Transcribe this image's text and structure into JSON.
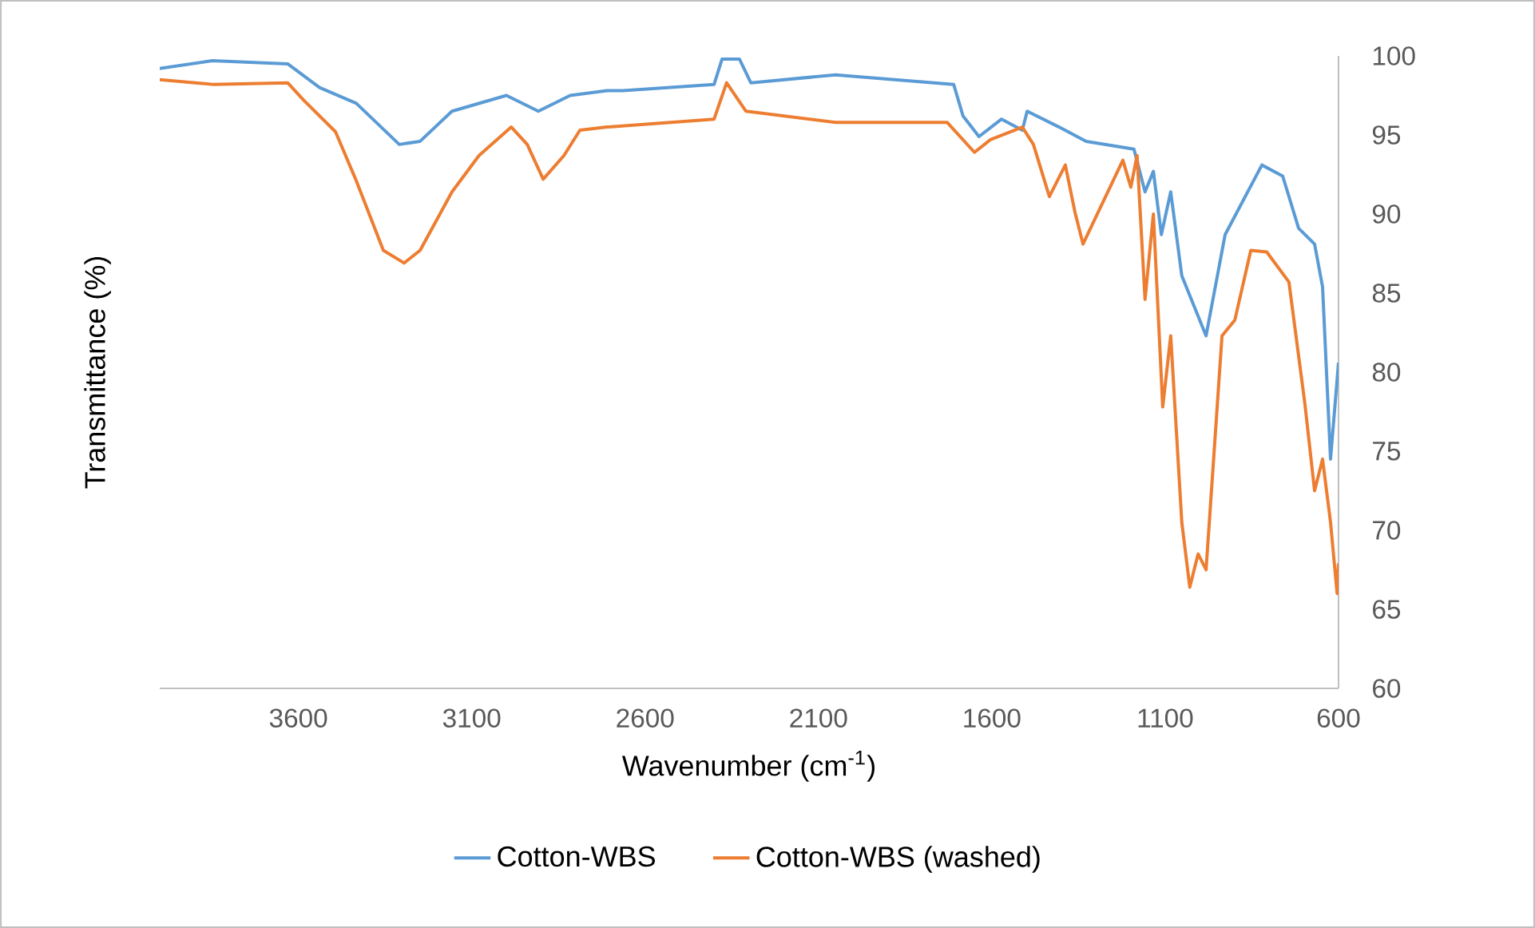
{
  "chart_data": {
    "type": "line",
    "xlabel": "Wavenumber (cm$^{-1}$)",
    "ylabel": "Transmittance (%)",
    "xlim": [
      4000,
      600
    ],
    "xticks": [
      3600,
      3100,
      2600,
      2100,
      1600,
      1100,
      600
    ],
    "ylim": [
      60,
      100
    ],
    "yticks": [
      60,
      65,
      70,
      75,
      80,
      85,
      90,
      95,
      100
    ],
    "legend": "bottom",
    "series": [
      {
        "name": "Cotton-WBS",
        "color": "#5b9bd5",
        "x": [
          4000,
          3848,
          3631,
          3539,
          3433,
          3309,
          3249,
          3157,
          3000,
          2908,
          2816,
          2710,
          2664,
          2401,
          2378,
          2328,
          2295,
          2051,
          1710,
          1683,
          1637,
          1572,
          1512,
          1498,
          1406,
          1328,
          1190,
          1158,
          1134,
          1111,
          1084,
          1052,
          1019,
          982,
          927,
          821,
          761,
          715,
          669,
          646,
          623,
          600
        ],
        "values": [
          99.2,
          99.7,
          99.5,
          98.0,
          97.0,
          94.4,
          94.6,
          96.5,
          97.5,
          96.5,
          97.5,
          97.8,
          97.8,
          98.2,
          99.8,
          99.8,
          98.3,
          98.8,
          98.2,
          96.2,
          94.9,
          96.0,
          95.3,
          96.5,
          95.5,
          94.6,
          94.1,
          91.4,
          92.7,
          88.7,
          91.4,
          86.1,
          84.3,
          82.3,
          88.7,
          93.1,
          92.4,
          89.1,
          88.1,
          85.4,
          74.5,
          80.6
        ]
      },
      {
        "name": "Cotton-WBS (washed)",
        "color": "#ed7d31",
        "x": [
          4000,
          3848,
          3631,
          3585,
          3493,
          3433,
          3355,
          3295,
          3249,
          3157,
          3079,
          2986,
          2940,
          2894,
          2834,
          2788,
          2710,
          2401,
          2365,
          2309,
          2051,
          1729,
          1650,
          1604,
          1512,
          1480,
          1434,
          1388,
          1360,
          1337,
          1222,
          1199,
          1181,
          1158,
          1134,
          1107,
          1084,
          1052,
          1029,
          1005,
          982,
          936,
          899,
          853,
          807,
          743,
          697,
          669,
          646,
          623,
          604,
          600
        ],
        "values": [
          98.5,
          98.2,
          98.3,
          97.2,
          95.2,
          92.1,
          87.7,
          86.9,
          87.7,
          91.4,
          93.7,
          95.5,
          94.4,
          92.2,
          93.7,
          95.3,
          95.5,
          96.0,
          98.3,
          96.5,
          95.8,
          95.8,
          93.9,
          94.7,
          95.5,
          94.4,
          91.1,
          93.1,
          90.1,
          88.1,
          93.4,
          91.7,
          93.7,
          84.6,
          90.0,
          77.8,
          82.3,
          70.5,
          66.4,
          68.5,
          67.5,
          82.3,
          83.3,
          87.7,
          87.6,
          85.7,
          78.0,
          72.5,
          74.5,
          70.5,
          66.0,
          67.9
        ]
      }
    ]
  }
}
